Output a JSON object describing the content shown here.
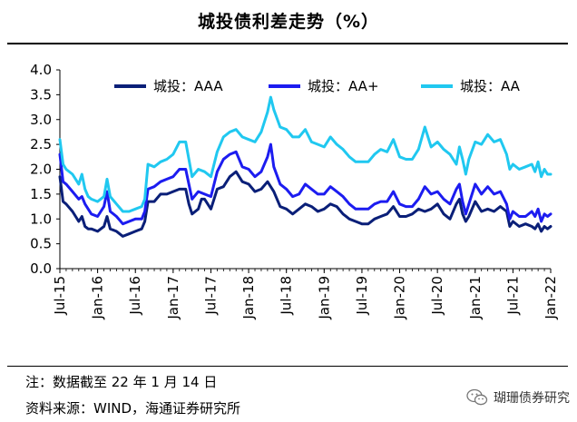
{
  "title": "城投债利差走势（%）",
  "chart_data": {
    "type": "line",
    "title": "城投债利差走势（%）",
    "xlabel": "",
    "ylabel": "",
    "ylim": [
      0,
      4
    ],
    "yticks": [
      "0.0",
      "0.5",
      "1.0",
      "1.5",
      "2.0",
      "2.5",
      "3.0",
      "3.5",
      "4.0"
    ],
    "xlim": [
      0,
      78
    ],
    "xticks": [
      {
        "label": "Jul-15",
        "x": 0
      },
      {
        "label": "Jan-16",
        "x": 6
      },
      {
        "label": "Jul-16",
        "x": 12
      },
      {
        "label": "Jan-17",
        "x": 18
      },
      {
        "label": "Jul-17",
        "x": 24
      },
      {
        "label": "Jan-18",
        "x": 30
      },
      {
        "label": "Jul-18",
        "x": 36
      },
      {
        "label": "Jan-19",
        "x": 42
      },
      {
        "label": "Jul-19",
        "x": 48
      },
      {
        "label": "Jan-20",
        "x": 54
      },
      {
        "label": "Jul-20",
        "x": 60
      },
      {
        "label": "Jan-21",
        "x": 66
      },
      {
        "label": "Jul-21",
        "x": 72
      },
      {
        "label": "Jan-22",
        "x": 78
      }
    ],
    "legend_position": "top",
    "series": [
      {
        "name": "城投：AAA",
        "color": "#0a1f78",
        "points": [
          [
            0,
            1.85
          ],
          [
            0.5,
            1.35
          ],
          [
            1,
            1.3
          ],
          [
            2,
            1.15
          ],
          [
            3,
            0.95
          ],
          [
            3.5,
            1.05
          ],
          [
            4,
            0.85
          ],
          [
            4.5,
            0.8
          ],
          [
            5,
            0.8
          ],
          [
            6,
            0.75
          ],
          [
            7,
            0.85
          ],
          [
            7.5,
            1.05
          ],
          [
            8,
            0.8
          ],
          [
            9,
            0.75
          ],
          [
            10,
            0.65
          ],
          [
            11,
            0.7
          ],
          [
            12,
            0.75
          ],
          [
            13,
            0.8
          ],
          [
            13.5,
            0.95
          ],
          [
            14,
            1.35
          ],
          [
            15,
            1.35
          ],
          [
            16,
            1.5
          ],
          [
            17,
            1.5
          ],
          [
            18,
            1.55
          ],
          [
            19,
            1.6
          ],
          [
            20,
            1.6
          ],
          [
            20.5,
            1.3
          ],
          [
            21,
            1.1
          ],
          [
            22,
            1.2
          ],
          [
            22.5,
            1.4
          ],
          [
            23,
            1.4
          ],
          [
            24,
            1.2
          ],
          [
            25,
            1.6
          ],
          [
            26,
            1.65
          ],
          [
            27,
            1.85
          ],
          [
            28,
            1.95
          ],
          [
            29,
            1.75
          ],
          [
            30,
            1.7
          ],
          [
            31,
            1.55
          ],
          [
            32,
            1.6
          ],
          [
            33,
            1.75
          ],
          [
            34,
            1.55
          ],
          [
            35,
            1.25
          ],
          [
            36,
            1.2
          ],
          [
            37,
            1.1
          ],
          [
            38,
            1.2
          ],
          [
            39,
            1.3
          ],
          [
            40,
            1.25
          ],
          [
            41,
            1.15
          ],
          [
            42,
            1.2
          ],
          [
            43,
            1.3
          ],
          [
            44,
            1.25
          ],
          [
            45,
            1.1
          ],
          [
            46,
            1.0
          ],
          [
            47,
            0.95
          ],
          [
            48,
            0.9
          ],
          [
            49,
            0.9
          ],
          [
            50,
            1.0
          ],
          [
            51,
            1.05
          ],
          [
            52,
            1.1
          ],
          [
            53,
            1.25
          ],
          [
            54,
            1.05
          ],
          [
            55,
            1.05
          ],
          [
            56,
            1.1
          ],
          [
            57,
            1.2
          ],
          [
            58,
            1.15
          ],
          [
            59,
            1.2
          ],
          [
            60,
            1.3
          ],
          [
            61,
            1.1
          ],
          [
            62,
            1.0
          ],
          [
            63,
            1.3
          ],
          [
            63.5,
            1.4
          ],
          [
            64,
            1.1
          ],
          [
            64.5,
            0.95
          ],
          [
            65,
            1.05
          ],
          [
            66,
            1.35
          ],
          [
            67,
            1.15
          ],
          [
            68,
            1.2
          ],
          [
            69,
            1.15
          ],
          [
            70,
            1.25
          ],
          [
            71,
            1.15
          ],
          [
            71.5,
            0.85
          ],
          [
            72,
            0.95
          ],
          [
            73,
            0.85
          ],
          [
            74,
            0.9
          ],
          [
            75,
            0.85
          ],
          [
            75.5,
            0.8
          ],
          [
            76,
            0.9
          ],
          [
            76.5,
            0.75
          ],
          [
            77,
            0.85
          ],
          [
            77.5,
            0.8
          ],
          [
            78,
            0.85
          ]
        ]
      },
      {
        "name": "城投：AA+",
        "color": "#1c1cf0",
        "points": [
          [
            0,
            2.3
          ],
          [
            0.5,
            1.75
          ],
          [
            1,
            1.7
          ],
          [
            2,
            1.55
          ],
          [
            3,
            1.4
          ],
          [
            3.5,
            1.45
          ],
          [
            4,
            1.3
          ],
          [
            4.5,
            1.2
          ],
          [
            5,
            1.1
          ],
          [
            6,
            1.05
          ],
          [
            7,
            1.25
          ],
          [
            7.5,
            1.55
          ],
          [
            8,
            1.15
          ],
          [
            9,
            1.05
          ],
          [
            10,
            0.9
          ],
          [
            11,
            0.95
          ],
          [
            12,
            1.0
          ],
          [
            13,
            1.0
          ],
          [
            13.5,
            1.15
          ],
          [
            14,
            1.6
          ],
          [
            15,
            1.65
          ],
          [
            16,
            1.75
          ],
          [
            17,
            1.8
          ],
          [
            18,
            1.85
          ],
          [
            19,
            2.0
          ],
          [
            20,
            2.0
          ],
          [
            20.5,
            1.7
          ],
          [
            21,
            1.4
          ],
          [
            22,
            1.55
          ],
          [
            23,
            1.5
          ],
          [
            24,
            1.45
          ],
          [
            25,
            1.95
          ],
          [
            26,
            2.2
          ],
          [
            27,
            2.3
          ],
          [
            28,
            2.35
          ],
          [
            29,
            2.05
          ],
          [
            30,
            2.0
          ],
          [
            31,
            1.85
          ],
          [
            32,
            1.95
          ],
          [
            33,
            2.25
          ],
          [
            33.5,
            2.5
          ],
          [
            34,
            2.05
          ],
          [
            35,
            1.7
          ],
          [
            36,
            1.6
          ],
          [
            37,
            1.45
          ],
          [
            38,
            1.5
          ],
          [
            39,
            1.7
          ],
          [
            40,
            1.6
          ],
          [
            41,
            1.5
          ],
          [
            42,
            1.5
          ],
          [
            43,
            1.65
          ],
          [
            44,
            1.55
          ],
          [
            45,
            1.45
          ],
          [
            46,
            1.3
          ],
          [
            47,
            1.2
          ],
          [
            48,
            1.2
          ],
          [
            49,
            1.2
          ],
          [
            50,
            1.3
          ],
          [
            51,
            1.35
          ],
          [
            52,
            1.35
          ],
          [
            53,
            1.55
          ],
          [
            54,
            1.3
          ],
          [
            55,
            1.25
          ],
          [
            56,
            1.25
          ],
          [
            57,
            1.4
          ],
          [
            58,
            1.65
          ],
          [
            59,
            1.5
          ],
          [
            60,
            1.55
          ],
          [
            61,
            1.4
          ],
          [
            62,
            1.3
          ],
          [
            63,
            1.6
          ],
          [
            63.5,
            1.7
          ],
          [
            64,
            1.35
          ],
          [
            64.5,
            1.1
          ],
          [
            65,
            1.3
          ],
          [
            66,
            1.7
          ],
          [
            67,
            1.5
          ],
          [
            68,
            1.65
          ],
          [
            69,
            1.5
          ],
          [
            70,
            1.55
          ],
          [
            71,
            1.3
          ],
          [
            71.5,
            1.0
          ],
          [
            72,
            1.15
          ],
          [
            73,
            1.05
          ],
          [
            74,
            1.05
          ],
          [
            75,
            1.15
          ],
          [
            75.5,
            1.05
          ],
          [
            76,
            1.2
          ],
          [
            76.5,
            0.95
          ],
          [
            77,
            1.1
          ],
          [
            77.5,
            1.05
          ],
          [
            78,
            1.1
          ]
        ]
      },
      {
        "name": "城投：AA",
        "color": "#20c8f0",
        "points": [
          [
            0,
            2.6
          ],
          [
            0.5,
            2.1
          ],
          [
            1,
            2.0
          ],
          [
            2,
            1.9
          ],
          [
            3,
            1.7
          ],
          [
            3.5,
            1.9
          ],
          [
            4,
            1.6
          ],
          [
            4.5,
            1.45
          ],
          [
            5,
            1.4
          ],
          [
            6,
            1.35
          ],
          [
            7,
            1.45
          ],
          [
            7.5,
            1.8
          ],
          [
            8,
            1.45
          ],
          [
            9,
            1.3
          ],
          [
            10,
            1.15
          ],
          [
            11,
            1.15
          ],
          [
            12,
            1.2
          ],
          [
            13,
            1.25
          ],
          [
            13.5,
            1.4
          ],
          [
            14,
            2.1
          ],
          [
            15,
            2.05
          ],
          [
            16,
            2.15
          ],
          [
            17,
            2.2
          ],
          [
            18,
            2.3
          ],
          [
            19,
            2.55
          ],
          [
            20,
            2.55
          ],
          [
            20.5,
            2.2
          ],
          [
            21,
            1.85
          ],
          [
            22,
            2.0
          ],
          [
            23,
            1.95
          ],
          [
            24,
            1.85
          ],
          [
            25,
            2.35
          ],
          [
            26,
            2.65
          ],
          [
            27,
            2.75
          ],
          [
            28,
            2.8
          ],
          [
            29,
            2.65
          ],
          [
            30,
            2.6
          ],
          [
            31,
            2.55
          ],
          [
            32,
            2.75
          ],
          [
            33,
            3.15
          ],
          [
            33.5,
            3.45
          ],
          [
            34,
            3.2
          ],
          [
            35,
            2.85
          ],
          [
            36,
            2.8
          ],
          [
            37,
            2.65
          ],
          [
            38,
            2.65
          ],
          [
            39,
            2.8
          ],
          [
            40,
            2.55
          ],
          [
            41,
            2.5
          ],
          [
            42,
            2.45
          ],
          [
            43,
            2.65
          ],
          [
            44,
            2.5
          ],
          [
            45,
            2.4
          ],
          [
            46,
            2.25
          ],
          [
            47,
            2.15
          ],
          [
            48,
            2.15
          ],
          [
            49,
            2.15
          ],
          [
            50,
            2.3
          ],
          [
            51,
            2.4
          ],
          [
            52,
            2.35
          ],
          [
            53,
            2.6
          ],
          [
            54,
            2.25
          ],
          [
            55,
            2.2
          ],
          [
            56,
            2.2
          ],
          [
            57,
            2.4
          ],
          [
            58,
            2.85
          ],
          [
            59,
            2.45
          ],
          [
            60,
            2.55
          ],
          [
            61,
            2.4
          ],
          [
            62,
            2.3
          ],
          [
            63,
            2.1
          ],
          [
            63.5,
            2.45
          ],
          [
            64,
            2.2
          ],
          [
            64.5,
            1.9
          ],
          [
            65,
            2.2
          ],
          [
            66,
            2.55
          ],
          [
            67,
            2.5
          ],
          [
            68,
            2.7
          ],
          [
            69,
            2.55
          ],
          [
            70,
            2.6
          ],
          [
            71,
            2.3
          ],
          [
            71.5,
            2.0
          ],
          [
            72,
            2.1
          ],
          [
            73,
            2.0
          ],
          [
            74,
            2.05
          ],
          [
            75,
            2.1
          ],
          [
            75.5,
            1.95
          ],
          [
            76,
            2.15
          ],
          [
            76.5,
            1.85
          ],
          [
            77,
            2.0
          ],
          [
            77.5,
            1.9
          ],
          [
            78,
            1.9
          ]
        ]
      }
    ]
  },
  "notes": {
    "note1": "注：数据截至 22 年 1 月 14 日",
    "note2": "资料来源：WIND，海通证券研究所"
  },
  "watermark": "瑚珊债券研究"
}
